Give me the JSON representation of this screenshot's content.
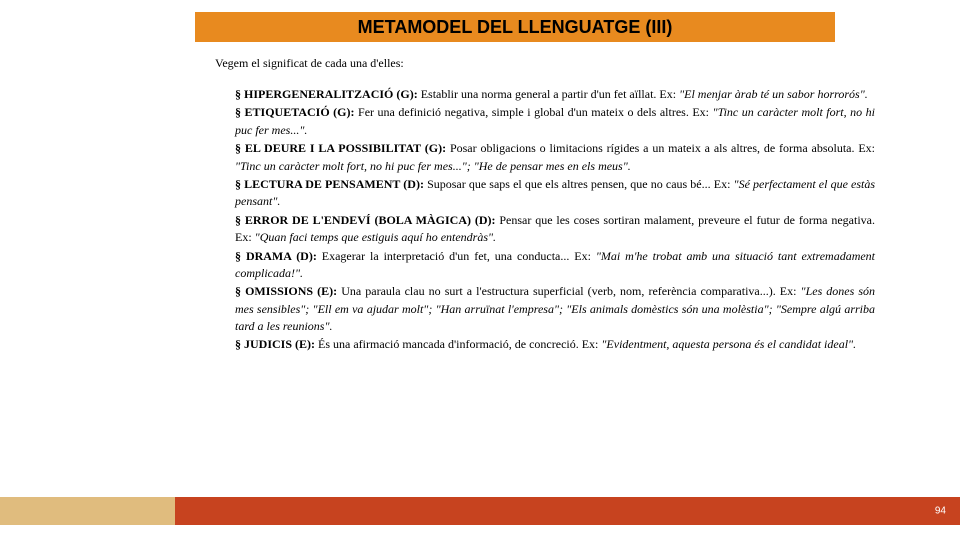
{
  "colors": {
    "title_bar_bg": "#e88a1f",
    "footer_left_bg": "#e0bc7e",
    "footer_right_bg": "#c7431f",
    "text": "#000000",
    "page_num_color": "#ffffff"
  },
  "title": "METAMODEL DEL LLENGUATGE (III)",
  "intro": "Vegem el significat de cada una d'elles:",
  "items": [
    {
      "term": "HIPERGENERALITZACIÓ (G):",
      "body": " Establir una norma general a partir d'un fet       aïllat. Ex: ",
      "ex_italic": "\"El menjar àrab té un sabor horrorós\"."
    },
    {
      "term": "ETIQUETACIÓ (G):",
      "body": " Fer una definició negativa, simple i global d'un mateix o       dels altres. Ex: ",
      "ex_italic": "\"Tinc un caràcter molt fort, no hi puc fer mes...\"."
    },
    {
      "term": "EL DEURE I LA POSSIBILITAT (G):",
      "body": " Posar obligacions o limitacions  rígides a  un  mateix a als altres, de forma absoluta. Ex: ",
      "ex_italic": "\"Tinc un caràcter molt fort, no hi     puc fer mes...\"; \"He de pensar mes en els meus\"."
    },
    {
      "term": "LECTURA DE PENSAMENT (D):",
      "body": " Suposar que saps el que els altres pensen,        que no caus bé... Ex: ",
      "ex_italic": "\"Sé perfectament el que estàs pensant\"."
    },
    {
      "term": "ERROR DE L'ENDEVÍ (BOLA MÀGICA) (D):",
      "body": " Pensar que les coses sortiran      malament, preveure el futur de forma negativa. Ex: ",
      "ex_italic": "\"Quan faci temps que       estiguis aquí ho entendràs\"."
    },
    {
      "term": "DRAMA (D):",
      "body": " Exagerar la interpretació d'un fet, una conducta... Ex: ",
      "ex_italic": "\"Mai m'he       trobat amb una situació tant extremadament complicada!\"."
    },
    {
      "term": "OMISSIONS (E):",
      "body": " Una paraula clau no surt a l'estructura superficial  (verb,     nom, referència comparativa...). Ex: ",
      "ex_italic": "\"Les dones són mes sensibles\"; \"Ell em   va ajudar molt\"; \"Han arruïnat l'empresa\"; \"Els animals domèstics són una    molèstia\"; \"Sempre algú arriba tard a les reunions\"."
    },
    {
      "term": "JUDICIS (E):",
      "body": " És una afirmació mancada d'informació, de concreció. Ex: ",
      "ex_italic": "\"Evidentment, aquesta persona és el candidat ideal\"."
    }
  ],
  "page_number": "94",
  "bullet_char": "§"
}
